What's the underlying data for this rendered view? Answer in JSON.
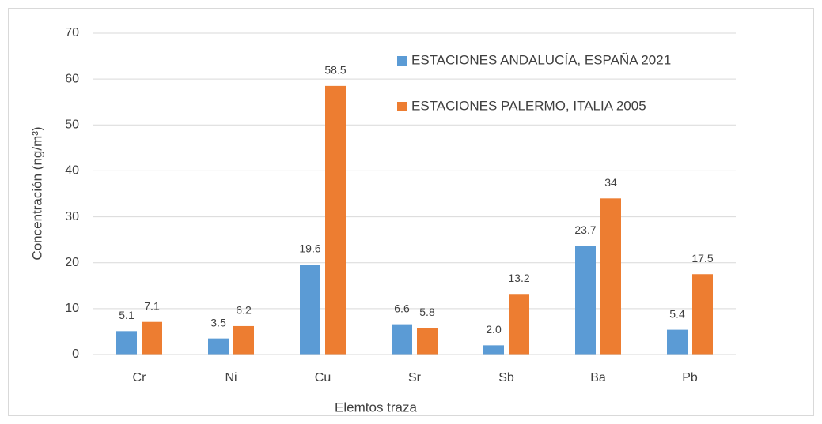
{
  "chart_data": {
    "type": "bar",
    "x_label": "Elemtos traza",
    "y_label": "Concentración (ng/m³)",
    "categories": [
      "Cr",
      "Ni",
      "Cu",
      "Sr",
      "Sb",
      "Ba",
      "Pb"
    ],
    "series": [
      {
        "name": "ESTACIONES ANDALUCÍA, ESPAÑA 2021",
        "color": "#5b9bd5",
        "values": [
          5.1,
          3.5,
          19.6,
          6.6,
          2.0,
          23.7,
          5.4
        ],
        "value_labels": [
          "5.1",
          "3.5",
          "19.6",
          "6.6",
          "2.0",
          "23.7",
          "5.4"
        ]
      },
      {
        "name": "ESTACIONES PALERMO, ITALIA 2005",
        "color": "#ed7d31",
        "values": [
          7.1,
          6.2,
          58.5,
          5.8,
          13.2,
          34,
          17.5
        ]
      }
    ],
    "ylim": [
      0,
      70
    ],
    "yticks": [
      0,
      10,
      20,
      30,
      40,
      50,
      60,
      70
    ],
    "grid": true
  }
}
